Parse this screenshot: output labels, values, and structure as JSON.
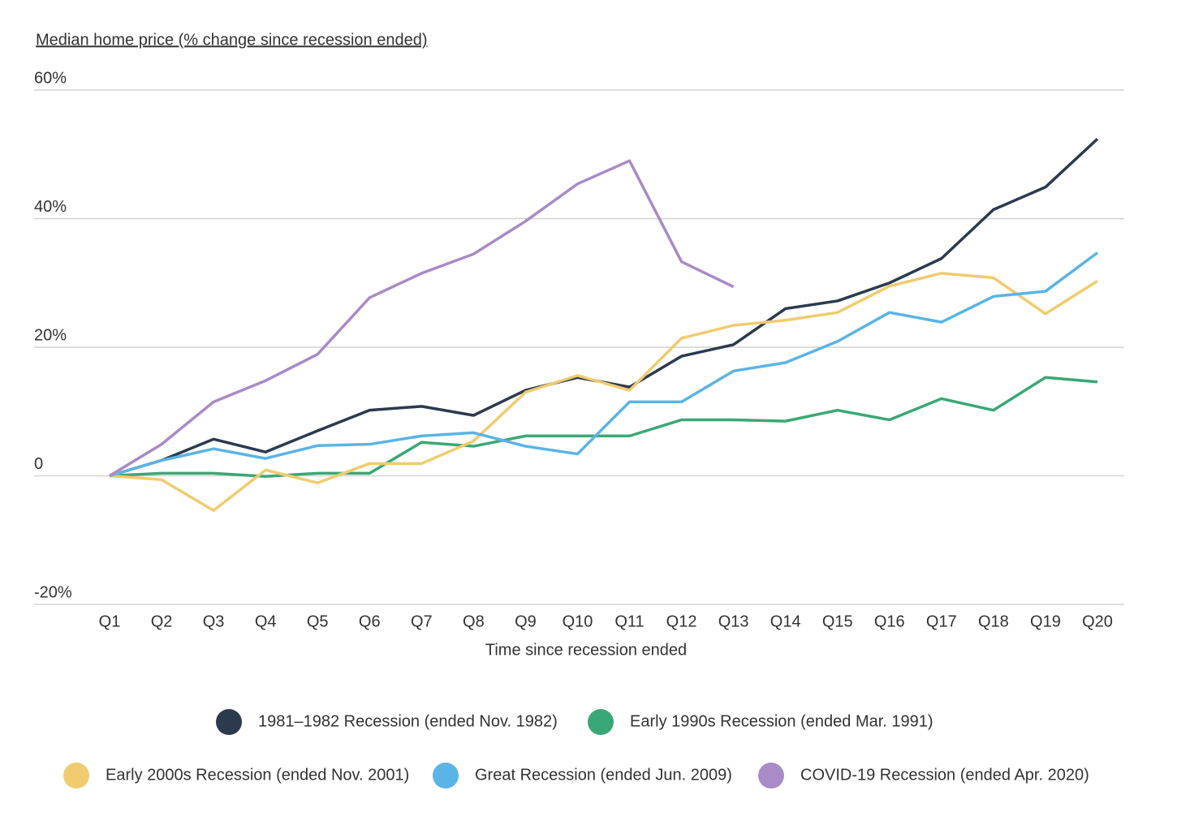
{
  "chart_data": {
    "type": "line",
    "title": "Median home price (% change since recession ended)",
    "x_label": "Time since recession ended",
    "categories": [
      "Q1",
      "Q2",
      "Q3",
      "Q4",
      "Q5",
      "Q6",
      "Q7",
      "Q8",
      "Q9",
      "Q10",
      "Q11",
      "Q12",
      "Q13",
      "Q14",
      "Q15",
      "Q16",
      "Q17",
      "Q18",
      "Q19",
      "Q20"
    ],
    "series": [
      {
        "name": "1981–1982 Recession (ended Nov. 1982)",
        "color": "#2b3a4e",
        "values": [
          0,
          2.4,
          5.7,
          3.7,
          7,
          10.2,
          10.8,
          9.4,
          13.3,
          15.3,
          13.8,
          18.6,
          20.4,
          26,
          27.2,
          30,
          33.8,
          41.4,
          44.9,
          52.4
        ]
      },
      {
        "name": "Early 1990s Recession (ended Mar. 1991)",
        "color": "#3aa876",
        "values": [
          0,
          0.4,
          0.4,
          -0.1,
          0.4,
          0.4,
          5.2,
          4.6,
          6.2,
          6.2,
          6.2,
          8.7,
          8.7,
          8.5,
          10.2,
          8.7,
          12,
          10.2,
          15.3,
          14.6
        ]
      },
      {
        "name": "Early 2000s Recession (ended Nov. 2001)",
        "color": "#f0cc6e",
        "values": [
          0,
          -0.6,
          -5.4,
          0.9,
          -1.1,
          1.9,
          1.9,
          5.4,
          13,
          15.6,
          13.3,
          21.4,
          23.4,
          24.2,
          25.4,
          29.5,
          31.5,
          30.8,
          25.2,
          30.3
        ]
      },
      {
        "name": "Great Recession (ended Jun. 2009)",
        "color": "#5ab4e5",
        "values": [
          0,
          2.4,
          4.2,
          2.7,
          4.7,
          4.9,
          6.2,
          6.7,
          4.6,
          3.4,
          11.5,
          11.5,
          16.3,
          17.6,
          20.9,
          25.4,
          23.9,
          27.9,
          28.7,
          34.7
        ]
      },
      {
        "name": "COVID-19 Recession (ended Apr. 2020)",
        "color": "#a98bc7",
        "values": [
          0,
          4.9,
          11.5,
          14.8,
          18.9,
          27.7,
          31.5,
          34.5,
          39.6,
          45.4,
          49,
          33.3,
          29.4,
          null,
          null,
          null,
          null,
          null,
          null,
          null
        ]
      }
    ],
    "ylim": [
      -20,
      60
    ],
    "yticks": [
      {
        "value": -20,
        "label": "-20%"
      },
      0,
      {
        "value": 20,
        "label": "20%"
      },
      {
        "value": 40,
        "label": "40%"
      },
      {
        "value": 60,
        "label": "60%"
      }
    ],
    "grid": true
  }
}
